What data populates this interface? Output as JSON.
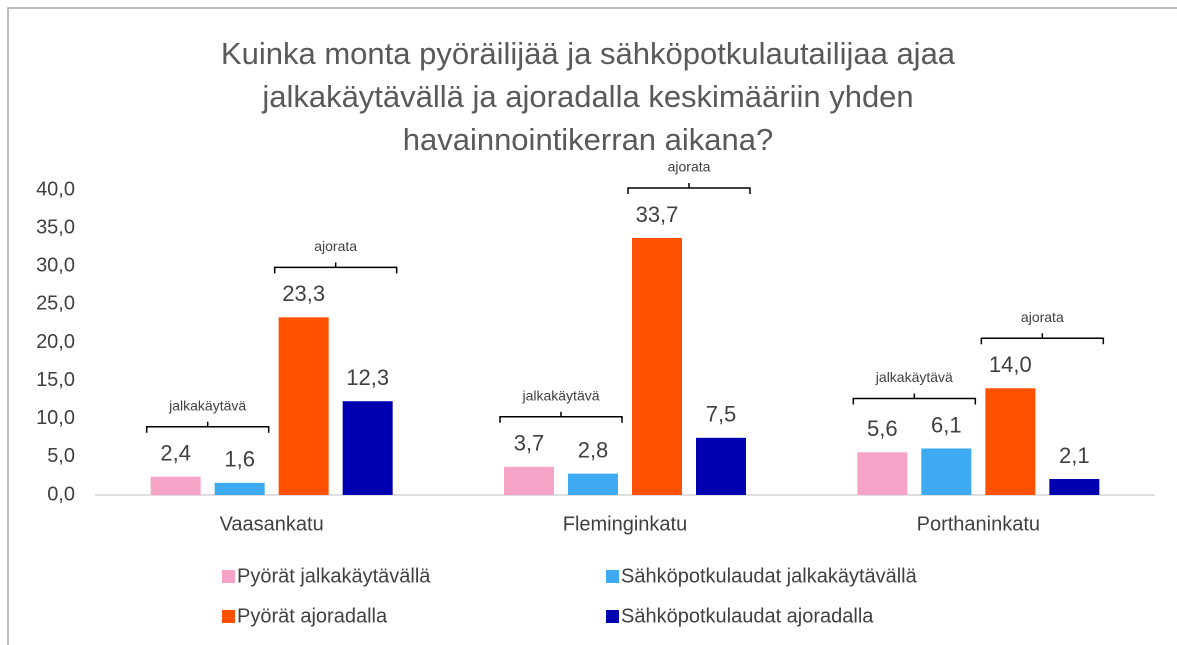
{
  "chart_data": {
    "type": "bar",
    "title": "Kuinka monta pyöräilijää ja sähköpotkulautailijaa ajaa jalkakäytävällä ja ajoradalla keskimääriin yhden havainnointikerran aikana?",
    "categories": [
      "Vaasankatu",
      "Fleminginkatu",
      "Porthaninkatu"
    ],
    "series": [
      {
        "name": "Pyörät jalkakäytävällä",
        "color": "#f5a3c7",
        "values": [
          2.4,
          3.7,
          5.6
        ],
        "value_labels": [
          "2,4",
          "3,7",
          "5,6"
        ]
      },
      {
        "name": "Sähköpotkulaudat jalkakäytävällä",
        "color": "#3eaaf2",
        "values": [
          1.6,
          2.8,
          6.1
        ],
        "value_labels": [
          "1,6",
          "2,8",
          "6,1"
        ]
      },
      {
        "name": "Pyörät ajoradalla",
        "color": "#ff5000",
        "values": [
          23.3,
          33.7,
          14.0
        ],
        "value_labels": [
          "23,3",
          "33,7",
          "14,0"
        ]
      },
      {
        "name": "Sähköpotkulaudat ajoradalla",
        "color": "#0000b0",
        "values": [
          12.3,
          7.5,
          2.1
        ],
        "value_labels": [
          "12,3",
          "7,5",
          "2,1"
        ]
      }
    ],
    "annotations": [
      [
        "jalkakäytävä",
        "ajorata"
      ],
      [
        "jalkakäytävä",
        "ajorata"
      ],
      [
        "jalkakäytävä",
        "ajorata"
      ]
    ],
    "ylim": [
      0,
      40
    ],
    "yticks": [
      {
        "value": 0,
        "label": "0,0"
      },
      {
        "value": 5,
        "label": "5,0"
      },
      {
        "value": 10,
        "label": "10,0"
      },
      {
        "value": 15,
        "label": "15,0"
      },
      {
        "value": 20,
        "label": "20,0"
      },
      {
        "value": 25,
        "label": "25,0"
      },
      {
        "value": 30,
        "label": "30,0"
      },
      {
        "value": 35,
        "label": "35,0"
      },
      {
        "value": 40,
        "label": "40,0"
      }
    ],
    "grid": false,
    "legend": "bottom"
  }
}
